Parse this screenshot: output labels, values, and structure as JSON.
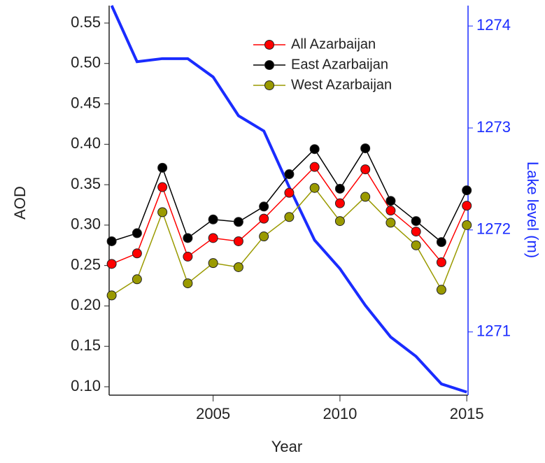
{
  "chart_data": {
    "type": "line",
    "x_label": "Year",
    "y_label": "AOD",
    "y2_label": "Lake level (m)",
    "x": [
      2001,
      2002,
      2003,
      2004,
      2005,
      2006,
      2007,
      2008,
      2009,
      2010,
      2011,
      2012,
      2013,
      2014,
      2015
    ],
    "series": [
      {
        "name": "All Azarbaijan",
        "color": "#ff0000",
        "values": [
          0.252,
          0.265,
          0.347,
          0.261,
          0.284,
          0.28,
          0.308,
          0.34,
          0.372,
          0.327,
          0.369,
          0.318,
          0.292,
          0.254,
          0.324
        ]
      },
      {
        "name": "East Azarbaijan",
        "color": "#000000",
        "values": [
          0.28,
          0.29,
          0.371,
          0.284,
          0.307,
          0.304,
          0.323,
          0.363,
          0.394,
          0.345,
          0.395,
          0.33,
          0.305,
          0.279,
          0.343
        ]
      },
      {
        "name": "West Azarbaijan",
        "color": "#9a9a00",
        "values": [
          0.213,
          0.233,
          0.316,
          0.228,
          0.253,
          0.248,
          0.286,
          0.31,
          0.346,
          0.305,
          0.335,
          0.303,
          0.275,
          0.22,
          0.3
        ]
      },
      {
        "color": "#1a2cff",
        "axis": "y2",
        "values": [
          1274.2,
          1273.65,
          1273.68,
          1273.68,
          1273.5,
          1273.12,
          1272.97,
          1272.42,
          1271.9,
          1271.62,
          1271.26,
          1270.95,
          1270.76,
          1270.49,
          1270.41
        ]
      }
    ],
    "xlim": [
      2000.9,
      2015.05
    ],
    "xticks": [
      2005,
      2010,
      2015
    ],
    "ylim": [
      0.0896,
      0.5716
    ],
    "yticks": [
      {
        "value": 0.1,
        "label": "0.10"
      },
      0.15,
      {
        "value": 0.2,
        "label": "0.20"
      },
      0.25,
      {
        "value": 0.3,
        "label": "0.30"
      },
      0.35,
      {
        "value": 0.4,
        "label": "0.40"
      },
      0.45,
      {
        "value": 0.5,
        "label": "0.50"
      },
      0.55
    ],
    "y2lim": [
      1270.38,
      1274.2
    ],
    "y2ticks": [
      1271,
      1272,
      1273,
      1274
    ],
    "legend": "top-center"
  }
}
